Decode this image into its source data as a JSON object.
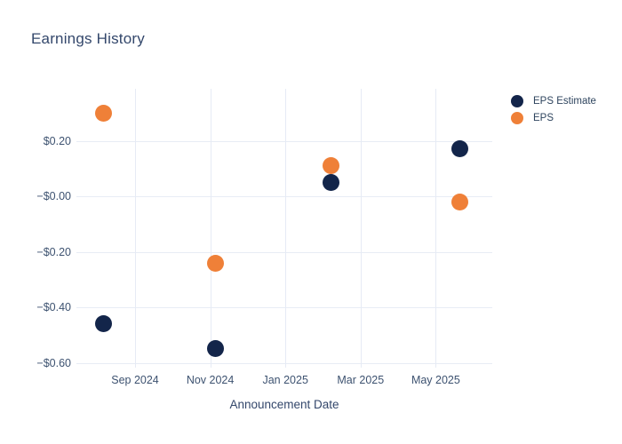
{
  "page": {
    "background": "#ffffff"
  },
  "chart_data": {
    "type": "scatter",
    "title": "Earnings History",
    "xlabel": "Announcement Date",
    "ylabel": "",
    "grid": true,
    "legend_position": "outside-right-top",
    "x_axis": {
      "ticks": [
        {
          "label": "Sep 2024",
          "months_from_sep_2024": 0
        },
        {
          "label": "Nov 2024",
          "months_from_sep_2024": 2
        },
        {
          "label": "Jan 2025",
          "months_from_sep_2024": 4
        },
        {
          "label": "Mar 2025",
          "months_from_sep_2024": 6
        },
        {
          "label": "May 2025",
          "months_from_sep_2024": 8
        }
      ]
    },
    "y_axis": {
      "ticks": [
        {
          "label": "$0.20",
          "value": 0.2
        },
        {
          "label": "−$0.00",
          "value": 0.0
        },
        {
          "label": "−$0.20",
          "value": -0.2
        },
        {
          "label": "−$0.40",
          "value": -0.4
        },
        {
          "label": "−$0.60",
          "value": -0.6
        }
      ]
    },
    "series": [
      {
        "name": "EPS Estimate",
        "color": "#13254a",
        "marker_size_px": 19,
        "points": [
          {
            "period": "Aug 2024",
            "months_from_sep_2024": -0.85,
            "value": -0.46
          },
          {
            "period": "Nov 2024",
            "months_from_sep_2024": 2.15,
            "value": -0.55
          },
          {
            "period": "Feb 2025",
            "months_from_sep_2024": 5.22,
            "value": 0.05
          },
          {
            "period": "May 2025",
            "months_from_sep_2024": 8.65,
            "value": 0.17
          }
        ]
      },
      {
        "name": "EPS",
        "color": "#ef8038",
        "marker_size_px": 19,
        "points": [
          {
            "period": "Aug 2024",
            "months_from_sep_2024": -0.85,
            "value": 0.3
          },
          {
            "period": "Nov 2024",
            "months_from_sep_2024": 2.15,
            "value": -0.24
          },
          {
            "period": "Feb 2025",
            "months_from_sep_2024": 5.22,
            "value": 0.11
          },
          {
            "period": "May 2025",
            "months_from_sep_2024": 8.65,
            "value": -0.02
          }
        ]
      }
    ],
    "colors": {
      "grid": "#e8ecf5",
      "title_text": "#33476b",
      "tick_text": "#3d5270",
      "eps_estimate": "#13254a",
      "eps": "#ef8038"
    }
  },
  "legend": {
    "items": [
      {
        "label": "EPS Estimate",
        "color": "#13254a"
      },
      {
        "label": "EPS",
        "color": "#ef8038"
      }
    ]
  }
}
